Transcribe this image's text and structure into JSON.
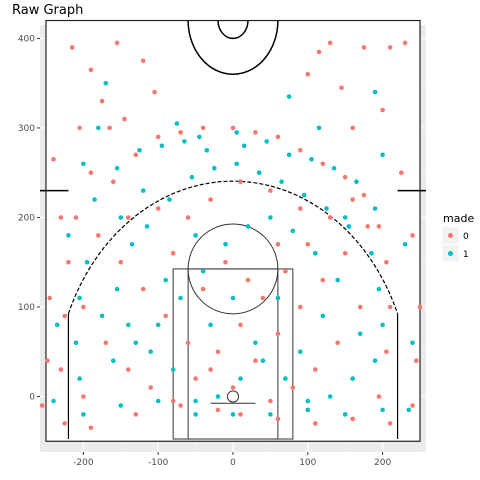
{
  "chart_data": {
    "type": "scatter",
    "title": "Raw Graph",
    "xlabel": "",
    "ylabel": "",
    "xlim": [
      -258,
      258
    ],
    "ylim": [
      -62,
      415
    ],
    "x_ticks": [
      -200,
      -100,
      0,
      100,
      200
    ],
    "x_tick_labels": [
      "-200",
      "-100",
      "0",
      "100",
      "200"
    ],
    "y_ticks": [
      0,
      100,
      200,
      300,
      400
    ],
    "y_tick_labels": [
      "0",
      "100",
      "200",
      "300",
      "400"
    ],
    "grid": true,
    "legend": {
      "title": "made",
      "position": "right",
      "entries": [
        {
          "label": "0",
          "color": "#F8766D"
        },
        {
          "label": "1",
          "color": "#00BFC4"
        }
      ]
    },
    "series": [
      {
        "name": "0",
        "color": "#F8766D",
        "points": [
          [
            -190,
            365
          ],
          [
            -155,
            395
          ],
          [
            -215,
            390
          ],
          [
            -120,
            375
          ],
          [
            -175,
            330
          ],
          [
            -105,
            340
          ],
          [
            -145,
            310
          ],
          [
            -205,
            300
          ],
          [
            -240,
            265
          ],
          [
            -230,
            200
          ],
          [
            -245,
            110
          ],
          [
            -255,
            -10
          ],
          [
            -248,
            40
          ],
          [
            -225,
            -30
          ],
          [
            -190,
            -35
          ],
          [
            -130,
            -20
          ],
          [
            -70,
            -10
          ],
          [
            -20,
            -15
          ],
          [
            10,
            -20
          ],
          [
            60,
            -25
          ],
          [
            110,
            -30
          ],
          [
            160,
            -25
          ],
          [
            210,
            -30
          ],
          [
            240,
            -10
          ],
          [
            245,
            40
          ],
          [
            250,
            100
          ],
          [
            240,
            180
          ],
          [
            225,
            250
          ],
          [
            200,
            320
          ],
          [
            175,
            390
          ],
          [
            130,
            395
          ],
          [
            115,
            385
          ],
          [
            100,
            360
          ],
          [
            145,
            345
          ],
          [
            160,
            300
          ],
          [
            210,
            390
          ],
          [
            230,
            395
          ],
          [
            -165,
            300
          ],
          [
            -190,
            250
          ],
          [
            -210,
            200
          ],
          [
            -220,
            150
          ],
          [
            -225,
            90
          ],
          [
            -230,
            30
          ],
          [
            -200,
            0
          ],
          [
            -160,
            240
          ],
          [
            -130,
            270
          ],
          [
            -100,
            290
          ],
          [
            -70,
            295
          ],
          [
            -40,
            300
          ],
          [
            0,
            300
          ],
          [
            30,
            295
          ],
          [
            60,
            290
          ],
          [
            90,
            275
          ],
          [
            120,
            260
          ],
          [
            150,
            245
          ],
          [
            175,
            225
          ],
          [
            195,
            190
          ],
          [
            205,
            150
          ],
          [
            210,
            100
          ],
          [
            205,
            50
          ],
          [
            195,
            0
          ],
          [
            -180,
            180
          ],
          [
            -150,
            150
          ],
          [
            -120,
            120
          ],
          [
            -90,
            90
          ],
          [
            -60,
            60
          ],
          [
            -30,
            30
          ],
          [
            0,
            10
          ],
          [
            30,
            40
          ],
          [
            60,
            70
          ],
          [
            90,
            100
          ],
          [
            120,
            130
          ],
          [
            150,
            160
          ],
          [
            180,
            190
          ],
          [
            -170,
            60
          ],
          [
            -140,
            30
          ],
          [
            -110,
            10
          ],
          [
            -80,
            -5
          ],
          [
            -50,
            20
          ],
          [
            -20,
            50
          ],
          [
            10,
            80
          ],
          [
            40,
            110
          ],
          [
            70,
            140
          ],
          [
            100,
            170
          ],
          [
            130,
            200
          ],
          [
            160,
            220
          ],
          [
            -60,
            200
          ],
          [
            -30,
            220
          ],
          [
            10,
            240
          ],
          [
            50,
            230
          ],
          [
            90,
            210
          ],
          [
            -100,
            210
          ],
          [
            -140,
            200
          ],
          [
            -200,
            100
          ],
          [
            170,
            100
          ],
          [
            140,
            60
          ],
          [
            110,
            30
          ],
          [
            80,
            10
          ],
          [
            50,
            -5
          ],
          [
            -10,
            150
          ],
          [
            -40,
            120
          ],
          [
            20,
            130
          ],
          [
            -80,
            160
          ],
          [
            60,
            170
          ]
        ]
      },
      {
        "name": "1",
        "color": "#00BFC4",
        "points": [
          [
            -170,
            350
          ],
          [
            75,
            335
          ],
          [
            -75,
            305
          ],
          [
            5,
            295
          ],
          [
            -45,
            290
          ],
          [
            115,
            300
          ],
          [
            -200,
            260
          ],
          [
            200,
            270
          ],
          [
            -220,
            180
          ],
          [
            230,
            170
          ],
          [
            -235,
            80
          ],
          [
            240,
            60
          ],
          [
            -240,
            -5
          ],
          [
            235,
            -15
          ],
          [
            -200,
            -20
          ],
          [
            -150,
            -10
          ],
          [
            -100,
            -5
          ],
          [
            -50,
            -20
          ],
          [
            0,
            -20
          ],
          [
            50,
            -20
          ],
          [
            100,
            -15
          ],
          [
            150,
            -20
          ],
          [
            200,
            -15
          ],
          [
            -185,
            220
          ],
          [
            -155,
            255
          ],
          [
            -125,
            275
          ],
          [
            -95,
            280
          ],
          [
            -65,
            285
          ],
          [
            -35,
            275
          ],
          [
            15,
            280
          ],
          [
            45,
            285
          ],
          [
            75,
            270
          ],
          [
            105,
            265
          ],
          [
            135,
            255
          ],
          [
            165,
            240
          ],
          [
            190,
            210
          ],
          [
            -195,
            150
          ],
          [
            -205,
            110
          ],
          [
            -210,
            60
          ],
          [
            -205,
            20
          ],
          [
            -175,
            90
          ],
          [
            -155,
            120
          ],
          [
            -135,
            170
          ],
          [
            -115,
            190
          ],
          [
            -85,
            220
          ],
          [
            -55,
            245
          ],
          [
            -25,
            255
          ],
          [
            5,
            260
          ],
          [
            35,
            250
          ],
          [
            65,
            240
          ],
          [
            95,
            225
          ],
          [
            125,
            210
          ],
          [
            155,
            190
          ],
          [
            185,
            160
          ],
          [
            195,
            120
          ],
          [
            200,
            80
          ],
          [
            190,
            40
          ],
          [
            -160,
            40
          ],
          [
            -130,
            60
          ],
          [
            -100,
            80
          ],
          [
            -70,
            110
          ],
          [
            -40,
            140
          ],
          [
            -10,
            170
          ],
          [
            20,
            190
          ],
          [
            50,
            200
          ],
          [
            80,
            185
          ],
          [
            110,
            160
          ],
          [
            140,
            130
          ],
          [
            170,
            70
          ],
          [
            160,
            20
          ],
          [
            130,
            0
          ],
          [
            100,
            -5
          ],
          [
            70,
            20
          ],
          [
            40,
            40
          ],
          [
            10,
            20
          ],
          [
            -20,
            0
          ],
          [
            -50,
            -5
          ],
          [
            -80,
            30
          ],
          [
            -110,
            50
          ],
          [
            -140,
            80
          ],
          [
            -120,
            230
          ],
          [
            -50,
            180
          ],
          [
            0,
            110
          ],
          [
            60,
            110
          ],
          [
            -90,
            130
          ],
          [
            -30,
            80
          ],
          [
            30,
            60
          ],
          [
            90,
            50
          ],
          [
            120,
            90
          ],
          [
            -150,
            200
          ],
          [
            150,
            200
          ],
          [
            -180,
            300
          ],
          [
            190,
            340
          ]
        ]
      }
    ]
  }
}
